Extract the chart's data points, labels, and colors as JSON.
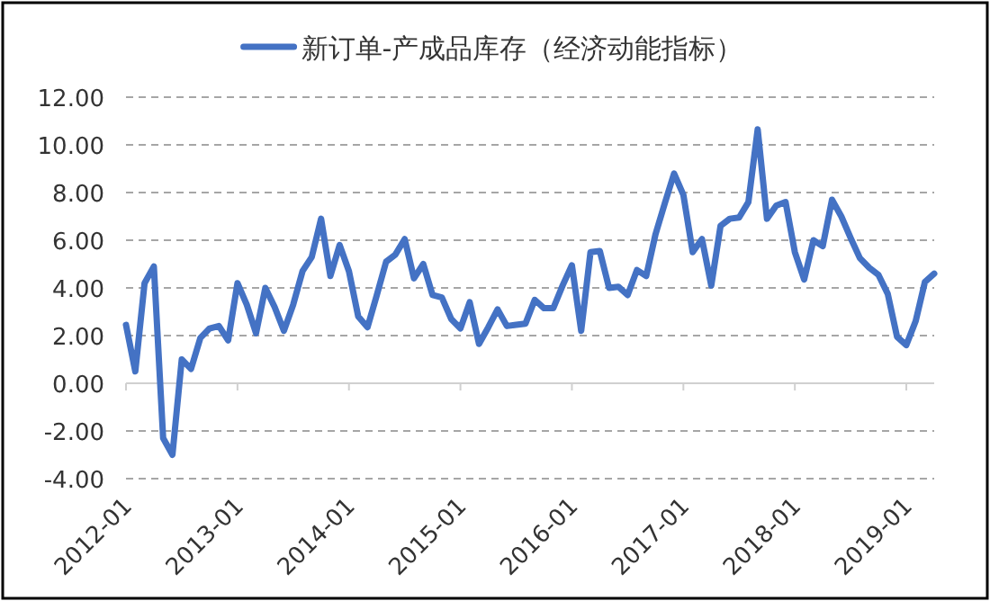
{
  "chart_data": {
    "type": "line",
    "x": [
      "2012-01",
      "2012-02",
      "2012-03",
      "2012-04",
      "2012-05",
      "2012-06",
      "2012-07",
      "2012-08",
      "2012-09",
      "2012-10",
      "2012-11",
      "2012-12",
      "2013-01",
      "2013-02",
      "2013-03",
      "2013-04",
      "2013-05",
      "2013-06",
      "2013-07",
      "2013-08",
      "2013-09",
      "2013-10",
      "2013-11",
      "2013-12",
      "2014-01",
      "2014-02",
      "2014-03",
      "2014-04",
      "2014-05",
      "2014-06",
      "2014-07",
      "2014-08",
      "2014-09",
      "2014-10",
      "2014-11",
      "2014-12",
      "2015-01",
      "2015-02",
      "2015-03",
      "2015-04",
      "2015-05",
      "2015-06",
      "2015-07",
      "2015-08",
      "2015-09",
      "2015-10",
      "2015-11",
      "2015-12",
      "2016-01",
      "2016-02",
      "2016-03",
      "2016-04",
      "2016-05",
      "2016-06",
      "2016-07",
      "2016-08",
      "2016-09",
      "2016-10",
      "2016-11",
      "2016-12",
      "2017-01",
      "2017-02",
      "2017-03",
      "2017-04",
      "2017-05",
      "2017-06",
      "2017-07",
      "2017-08",
      "2017-09",
      "2017-10",
      "2017-11",
      "2017-12",
      "2018-01",
      "2018-02",
      "2018-03",
      "2018-04",
      "2018-05",
      "2018-06",
      "2018-07",
      "2018-08",
      "2018-09",
      "2018-10",
      "2018-11",
      "2018-12",
      "2019-01",
      "2019-02",
      "2019-03",
      "2019-04"
    ],
    "series": [
      {
        "name": "新订单-产成品库存（经济动能指标）",
        "color": "#4472c4",
        "values": [
          2.45,
          0.5,
          4.2,
          4.9,
          -2.3,
          -3.0,
          1.0,
          0.6,
          1.9,
          2.3,
          2.4,
          1.8,
          4.2,
          3.3,
          2.1,
          4.0,
          3.2,
          2.2,
          3.3,
          4.7,
          5.3,
          6.9,
          4.5,
          5.8,
          4.7,
          2.8,
          2.35,
          3.7,
          5.1,
          5.4,
          6.05,
          4.4,
          5.0,
          3.7,
          3.6,
          2.7,
          2.3,
          3.4,
          1.65,
          2.35,
          3.1,
          2.4,
          2.45,
          2.5,
          3.5,
          3.15,
          3.15,
          4.1,
          4.95,
          2.2,
          5.5,
          5.55,
          4.0,
          4.05,
          3.7,
          4.75,
          4.5,
          6.25,
          7.55,
          8.8,
          7.9,
          5.5,
          6.05,
          4.1,
          6.6,
          6.9,
          6.95,
          7.6,
          10.65,
          6.9,
          7.45,
          7.6,
          5.5,
          4.35,
          6.0,
          5.75,
          7.7,
          7.0,
          6.1,
          5.25,
          4.85,
          4.55,
          3.75,
          1.95,
          1.6,
          2.6,
          4.25,
          4.6
        ]
      }
    ],
    "xlim": [
      "2012-01",
      "2019-04"
    ],
    "xticks": [
      "2012-01",
      "2013-01",
      "2014-01",
      "2015-01",
      "2016-01",
      "2017-01",
      "2018-01",
      "2019-01"
    ],
    "ylim": [
      -4,
      12
    ],
    "yticks": [
      {
        "value": -4,
        "label": "-4.00"
      },
      {
        "value": -2,
        "label": "-2.00"
      },
      {
        "value": 0,
        "label": "0.00"
      },
      {
        "value": 2,
        "label": "2.00"
      },
      {
        "value": 4,
        "label": "4.00"
      },
      {
        "value": 6,
        "label": "6.00"
      },
      {
        "value": 8,
        "label": "8.00"
      },
      {
        "value": 10,
        "label": "10.00"
      },
      {
        "value": 12,
        "label": "12.00"
      }
    ],
    "grid": "y",
    "legend": "top",
    "marker": "none",
    "line_style": "solid"
  }
}
